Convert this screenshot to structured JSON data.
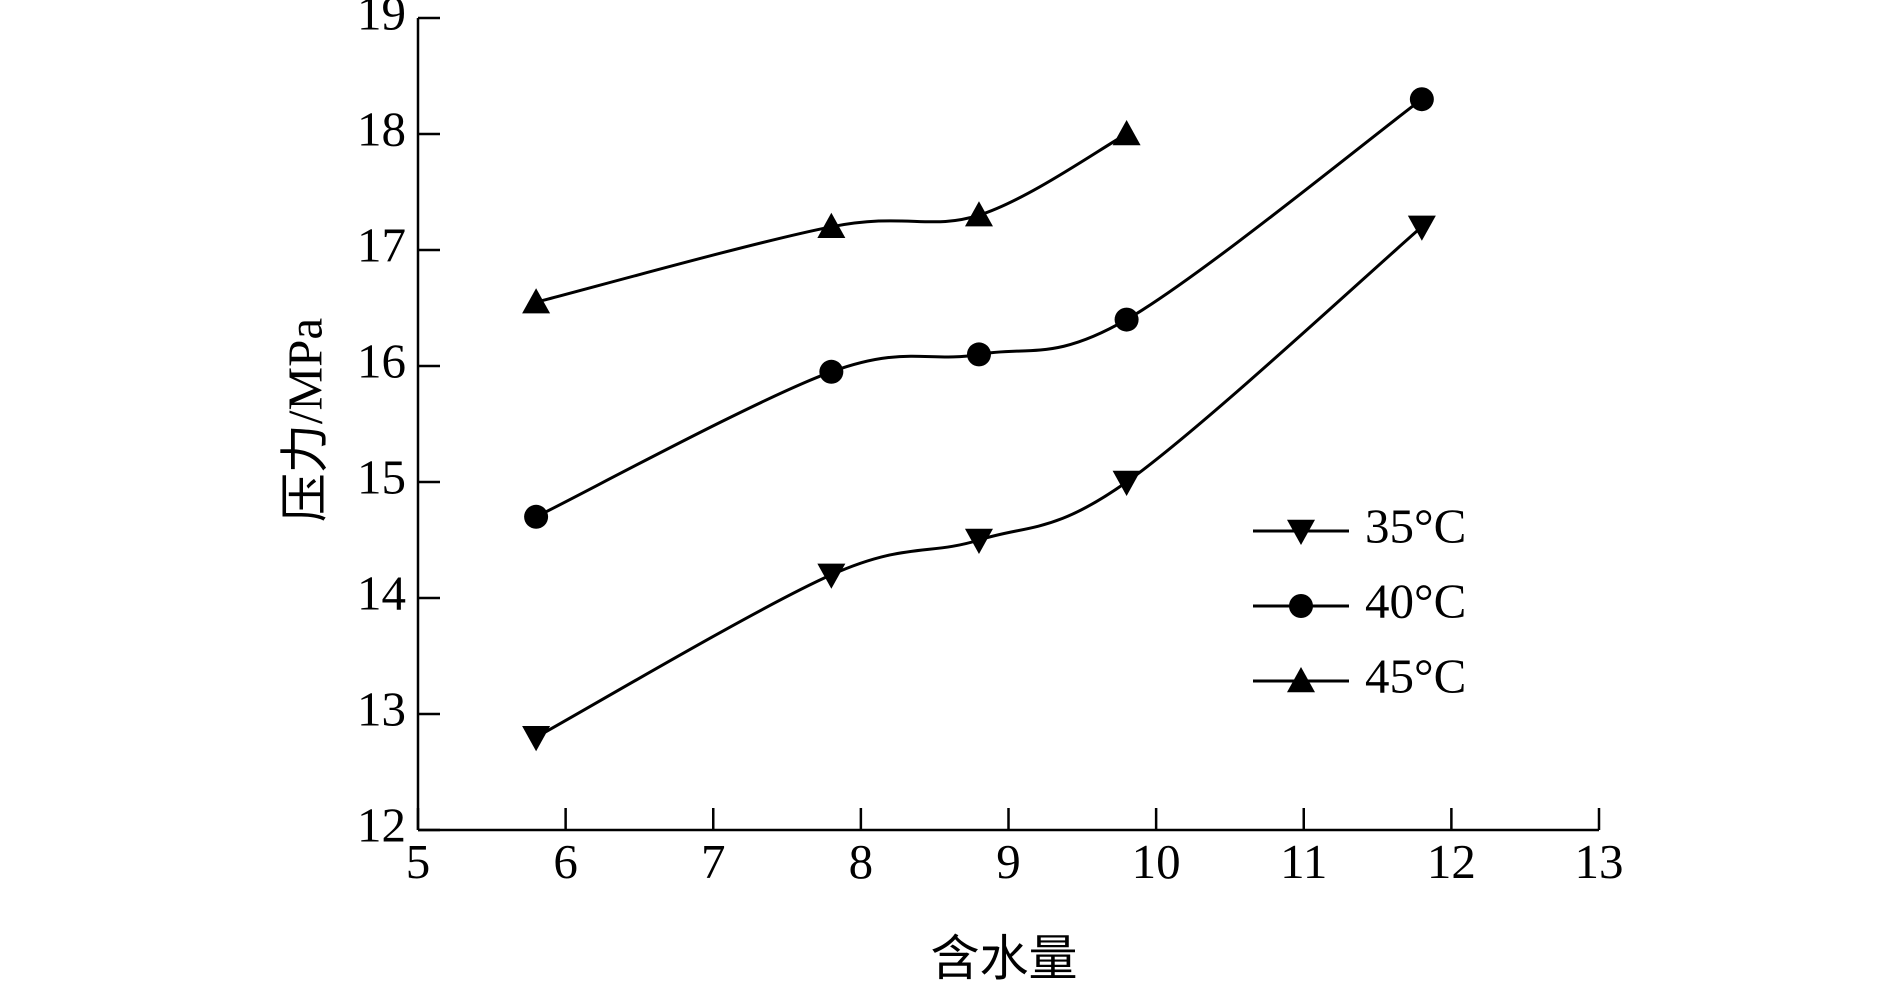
{
  "chart_data": {
    "type": "line",
    "xlabel": "含水量",
    "ylabel": "压力/MPa",
    "xlim": [
      5,
      13
    ],
    "xticks": [
      5,
      6,
      7,
      8,
      9,
      10,
      11,
      12,
      13
    ],
    "ylim": [
      12,
      19
    ],
    "yticks": [
      12,
      13,
      14,
      15,
      16,
      17,
      18,
      19
    ],
    "smooth": true,
    "legend": "lower right",
    "series": [
      {
        "name": "35°C",
        "color": "#000000",
        "marker": "triangle-down",
        "x": [
          5.8,
          7.8,
          8.8,
          9.8,
          11.8
        ],
        "values": [
          12.8,
          14.2,
          14.5,
          15.0,
          17.2
        ]
      },
      {
        "name": "40°C",
        "color": "#000000",
        "marker": "circle",
        "x": [
          5.8,
          7.8,
          8.8,
          9.8,
          11.8
        ],
        "values": [
          14.7,
          15.95,
          16.1,
          16.4,
          18.3
        ]
      },
      {
        "name": "45°C",
        "color": "#000000",
        "marker": "triangle-up",
        "x": [
          5.8,
          7.8,
          8.8,
          9.8
        ],
        "values": [
          16.55,
          17.2,
          17.3,
          18.0
        ]
      }
    ]
  }
}
